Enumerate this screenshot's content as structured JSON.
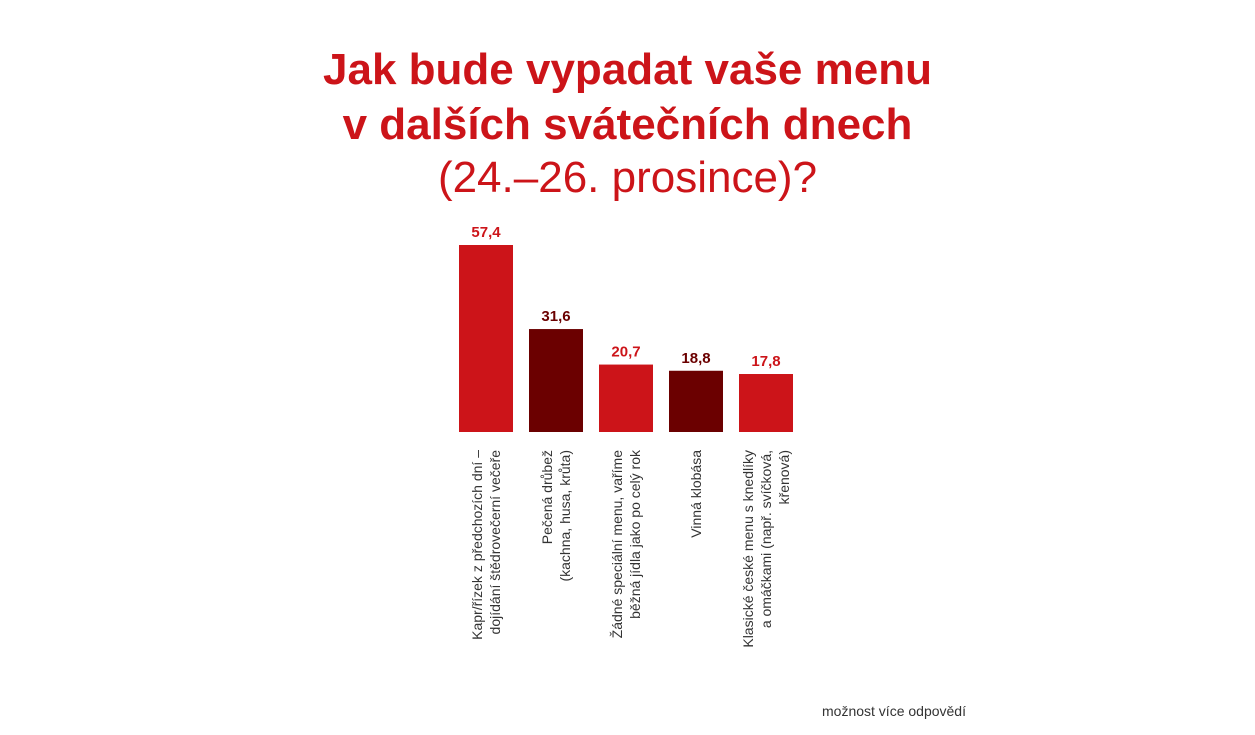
{
  "title_lines": [
    "Jak bude vypadat vaše menu",
    "v dalších svátečních dnech",
    "(24.–26. prosince)?"
  ],
  "footnote": "možnost více odpovědí",
  "colors": {
    "title": "#cc1419",
    "bar_red": "#cc1419",
    "bar_dark": "#6b0000",
    "label_text": "#333333"
  },
  "chart_data": {
    "type": "bar",
    "categories": [
      [
        "Kapr/řízek z předchozích dní –",
        "dojídání štědrovečerní večeře"
      ],
      [
        "Pečená drůbež",
        "(kachna, husa, krůta)"
      ],
      [
        "Žádné speciální menu, vaříme",
        "běžná jídla jako po celý rok"
      ],
      [
        "Vinná klobása"
      ],
      [
        "Klasické české menu s knedlíky",
        "a omáčkami (např. svíčková,",
        "křenová)"
      ]
    ],
    "values": [
      57.4,
      31.6,
      20.7,
      18.8,
      17.8
    ],
    "value_labels": [
      "57,4",
      "31,6",
      "20,7",
      "18,8",
      "17,8"
    ],
    "bar_colors": [
      "#cc1419",
      "#6b0000",
      "#cc1419",
      "#6b0000",
      "#cc1419"
    ],
    "ylim": [
      0,
      57.4
    ],
    "grid": false,
    "legend": "none"
  }
}
